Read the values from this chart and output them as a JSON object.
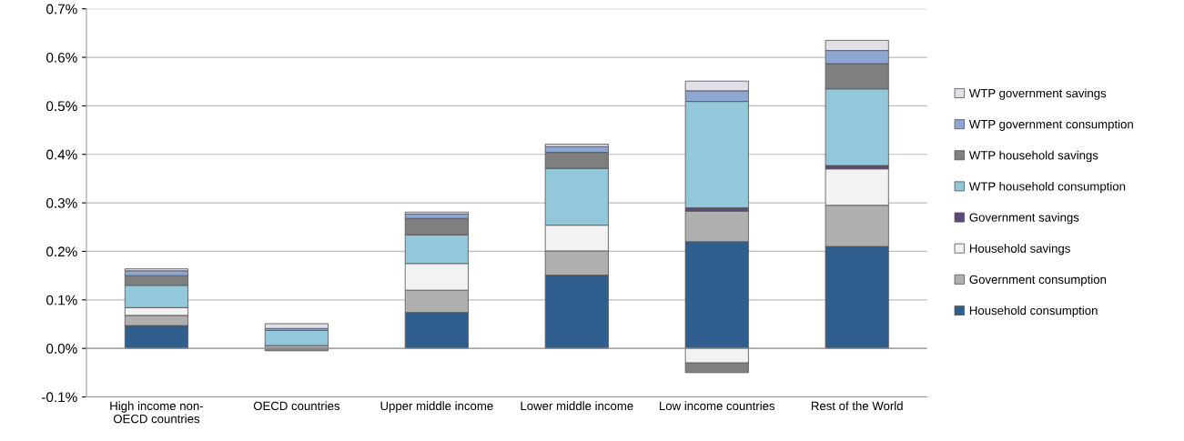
{
  "chart_data": {
    "type": "bar",
    "stacked": true,
    "categories": [
      "High income non-\nOECD countries",
      "OECD countries",
      "Upper middle income",
      "Lower middle income",
      "Low income countries",
      "Rest of the World"
    ],
    "series": [
      {
        "name": "Household consumption",
        "color": "#2f5f8f",
        "values": [
          0.047,
          null,
          0.074,
          0.151,
          0.22,
          0.21
        ]
      },
      {
        "name": "Government consumption",
        "color": "#b0b0b0",
        "values": [
          0.021,
          0.006,
          0.046,
          0.05,
          0.063,
          0.085
        ]
      },
      {
        "name": "Household savings",
        "color": "#f2f2f2",
        "values": [
          0.016,
          null,
          0.055,
          0.053,
          -0.03,
          0.075
        ]
      },
      {
        "name": "Government savings",
        "color": "#5b4a7a",
        "values": [
          null,
          null,
          null,
          null,
          0.007,
          0.007
        ]
      },
      {
        "name": "WTP household consumption",
        "color": "#92c8da",
        "values": [
          0.046,
          0.031,
          0.059,
          0.117,
          0.219,
          0.158
        ]
      },
      {
        "name": "WTP household savings",
        "color": "#7f7f7f",
        "values": [
          0.02,
          -0.005,
          0.034,
          0.033,
          -0.02,
          0.052
        ]
      },
      {
        "name": "WTP government consumption",
        "color": "#8ea6d2",
        "values": [
          0.01,
          0.004,
          0.009,
          0.012,
          0.022,
          0.027
        ]
      },
      {
        "name": "WTP government savings",
        "color": "#e2dfe9",
        "values": [
          0.004,
          0.01,
          0.004,
          0.005,
          0.02,
          0.021
        ]
      }
    ],
    "ylim": [
      -0.1,
      0.7
    ],
    "yticks": [
      {
        "value": -0.1,
        "label": "-0.1%"
      },
      {
        "value": 0.0,
        "label": "0.0%"
      },
      {
        "value": 0.1,
        "label": "0.1%"
      },
      {
        "value": 0.2,
        "label": "0.2%"
      },
      {
        "value": 0.3,
        "label": "0.3%"
      },
      {
        "value": 0.4,
        "label": "0.4%"
      },
      {
        "value": 0.5,
        "label": "0.5%"
      },
      {
        "value": 0.6,
        "label": "0.6%"
      },
      {
        "value": 0.7,
        "label": "0.7%"
      }
    ],
    "grid": "y",
    "legend": "right"
  }
}
